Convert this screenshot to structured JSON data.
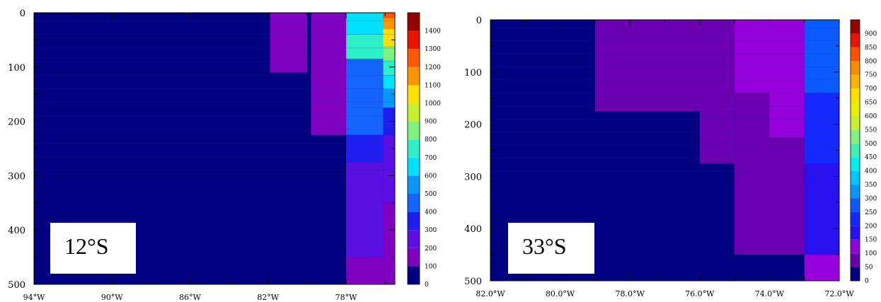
{
  "chart_data": [
    {
      "type": "heatmap",
      "panel_label": "12°S",
      "xlim": [
        -94,
        -75.5
      ],
      "ylim": [
        500,
        0
      ],
      "xticks": [
        -94,
        -90,
        -86,
        -82,
        -78
      ],
      "xtick_labels": [
        "94°W",
        "90°W",
        "86°W",
        "82°W",
        "78°W"
      ],
      "yticks": [
        0,
        100,
        200,
        300,
        400,
        500
      ],
      "ytick_labels": [
        "0",
        "100",
        "200",
        "300",
        "400",
        "500"
      ],
      "colorbar": {
        "levels": [
          0,
          100,
          200,
          300,
          400,
          500,
          600,
          700,
          800,
          900,
          1000,
          1100,
          1200,
          1300,
          1400
        ],
        "labels": [
          "0",
          "100",
          "200",
          "300",
          "400",
          "500",
          "600",
          "700",
          "800",
          "900",
          "1000",
          "1100",
          "1200",
          "1300",
          "1400"
        ],
        "colors": [
          "#000080",
          "#8000c0",
          "#5a10e0",
          "#1e1ef0",
          "#1464ff",
          "#0a96ff",
          "#00e0ff",
          "#2ef0c8",
          "#80f080",
          "#c8f030",
          "#ffe000",
          "#ff9600",
          "#ff5a00",
          "#e61400",
          "#960000"
        ]
      },
      "background_value": 50,
      "cells": [
        {
          "x": [
            -81.9,
            -80
          ],
          "y": [
            0,
            20
          ],
          "value": 150
        },
        {
          "x": [
            -81.9,
            -80
          ],
          "y": [
            15,
            110
          ],
          "value": 150
        },
        {
          "x": [
            -79.8,
            -78
          ],
          "y": [
            0,
            225
          ],
          "value": 150
        },
        {
          "x": [
            -78,
            -76.1
          ],
          "y": [
            0,
            40
          ],
          "value": 650
        },
        {
          "x": [
            -78,
            -76.1
          ],
          "y": [
            40,
            85
          ],
          "value": 700
        },
        {
          "x": [
            -78,
            -76.1
          ],
          "y": [
            85,
            175
          ],
          "value": 450
        },
        {
          "x": [
            -78,
            -76.1
          ],
          "y": [
            175,
            225
          ],
          "value": 450
        },
        {
          "x": [
            -78,
            -76.1
          ],
          "y": [
            225,
            275
          ],
          "value": 350
        },
        {
          "x": [
            -78,
            -76.1
          ],
          "y": [
            275,
            450
          ],
          "value": 250
        },
        {
          "x": [
            -78,
            -76.1
          ],
          "y": [
            450,
            500
          ],
          "value": 150
        },
        {
          "x": [
            -76.1,
            -75.5
          ],
          "y": [
            0,
            10
          ],
          "value": 1250
        },
        {
          "x": [
            -76.1,
            -75.5
          ],
          "y": [
            10,
            30
          ],
          "value": 1150
        },
        {
          "x": [
            -76.1,
            -75.5
          ],
          "y": [
            30,
            62
          ],
          "value": 1050
        },
        {
          "x": [
            -76.1,
            -75.5
          ],
          "y": [
            62,
            88
          ],
          "value": 850
        },
        {
          "x": [
            -76.1,
            -75.5
          ],
          "y": [
            88,
            115
          ],
          "value": 750
        },
        {
          "x": [
            -76.1,
            -75.5
          ],
          "y": [
            115,
            140
          ],
          "value": 650
        },
        {
          "x": [
            -76.1,
            -75.5
          ],
          "y": [
            140,
            175
          ],
          "value": 550
        },
        {
          "x": [
            -76.1,
            -75.5
          ],
          "y": [
            175,
            225
          ],
          "value": 350
        },
        {
          "x": [
            -76.1,
            -75.5
          ],
          "y": [
            225,
            350
          ],
          "value": 250
        },
        {
          "x": [
            -76.1,
            -75.5
          ],
          "y": [
            350,
            500
          ],
          "value": 150
        }
      ]
    },
    {
      "type": "heatmap",
      "panel_label": "33°S",
      "xlim": [
        -82,
        -72
      ],
      "ylim": [
        500,
        0
      ],
      "xticks": [
        -82,
        -80,
        -78,
        -76,
        -74,
        -72
      ],
      "xtick_labels": [
        "82.0°W",
        "80.0°W",
        "78.0°W",
        "76.0°W",
        "74.0°W",
        "72.0°W"
      ],
      "yticks": [
        0,
        100,
        200,
        300,
        400,
        500
      ],
      "ytick_labels": [
        "0",
        "100",
        "200",
        "300",
        "400",
        "500"
      ],
      "colorbar": {
        "levels": [
          0,
          50,
          100,
          150,
          200,
          250,
          300,
          350,
          400,
          450,
          500,
          550,
          600,
          650,
          700,
          750,
          800,
          850,
          900
        ],
        "labels": [
          "0",
          "50",
          "100",
          "150",
          "200",
          "250",
          "300",
          "350",
          "400",
          "450",
          "500",
          "550",
          "600",
          "650",
          "700",
          "750",
          "800",
          "850",
          "900"
        ],
        "colors": [
          "#000080",
          "#6a00b0",
          "#9600dc",
          "#2810f0",
          "#1428ff",
          "#0a5aff",
          "#0a96ff",
          "#00c8ff",
          "#00f0f0",
          "#40f0b4",
          "#80f080",
          "#c8f030",
          "#e6f000",
          "#ffe000",
          "#ffb400",
          "#ff8c00",
          "#ff5000",
          "#e61400",
          "#960000"
        ]
      },
      "background_value": 25,
      "cells": [
        {
          "x": [
            -79,
            -75
          ],
          "y": [
            0,
            175
          ],
          "value": 75
        },
        {
          "x": [
            -75,
            -73
          ],
          "y": [
            0,
            140
          ],
          "value": 125
        },
        {
          "x": [
            -73,
            -72
          ],
          "y": [
            0,
            140
          ],
          "value": 275
        },
        {
          "x": [
            -76,
            -75
          ],
          "y": [
            175,
            275
          ],
          "value": 75
        },
        {
          "x": [
            -75,
            -74
          ],
          "y": [
            140,
            450
          ],
          "value": 75
        },
        {
          "x": [
            -74,
            -73
          ],
          "y": [
            140,
            225
          ],
          "value": 125
        },
        {
          "x": [
            -74,
            -73
          ],
          "y": [
            225,
            450
          ],
          "value": 75
        },
        {
          "x": [
            -73,
            -72
          ],
          "y": [
            140,
            275
          ],
          "value": 225
        },
        {
          "x": [
            -73,
            -72
          ],
          "y": [
            275,
            450
          ],
          "value": 175
        },
        {
          "x": [
            -73,
            -72
          ],
          "y": [
            450,
            500
          ],
          "value": 125
        }
      ]
    }
  ]
}
